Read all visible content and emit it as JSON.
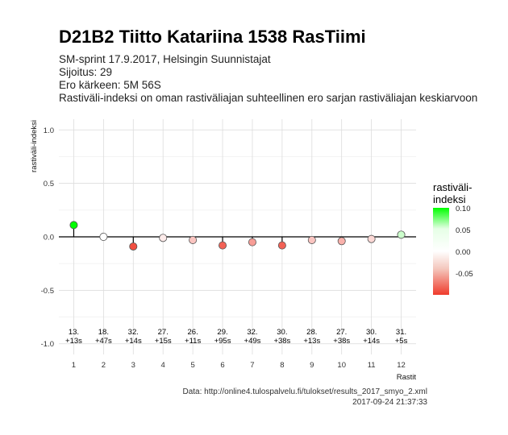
{
  "header": {
    "title": "D21B2 Tiitto Katariina 1538 RasTiimi",
    "subtitle_lines": [
      "SM-sprint 17.9.2017, Helsingin Suunnistajat",
      "Sijoitus: 29",
      "Ero kärkeen: 5M 56S",
      "Rastiväli-indeksi on oman rastiväliajan suhteellinen ero sarjan rastiväliajan keskiarvoon"
    ]
  },
  "legend": {
    "title_line1": "rastiväli-",
    "title_line2": "indeksi",
    "ticks": [
      "0.10",
      "0.05",
      "0.00",
      "-0.05"
    ],
    "colors": {
      "high": "#00ff00",
      "mid": "#ffffff",
      "low": "#ef3b2c"
    }
  },
  "caption": {
    "data_source": "Data: http://online4.tulospalvelu.fi/tulokset/results_2017_smyo_2.xml",
    "timestamp": "2017-09-24 21:37:33"
  },
  "chart_data": {
    "type": "scatter",
    "xlabel": "Rastit",
    "ylabel": "rastiväli-indeksi",
    "ylim": [
      -1.0,
      1.0
    ],
    "yticks": [
      "1.0",
      "0.5",
      "0.0",
      "-0.5",
      "-1.0"
    ],
    "yticks_values": [
      1.0,
      0.5,
      0.0,
      -0.5,
      -1.0
    ],
    "x": [
      1,
      2,
      3,
      4,
      5,
      6,
      7,
      8,
      9,
      10,
      11,
      12
    ],
    "values": [
      0.11,
      0.0,
      -0.09,
      -0.01,
      -0.03,
      -0.08,
      -0.05,
      -0.08,
      -0.03,
      -0.04,
      -0.02,
      0.02
    ],
    "point_labels_top": [
      "13.",
      "18.",
      "32.",
      "27.",
      "26.",
      "29.",
      "32.",
      "30.",
      "28.",
      "27.",
      "30.",
      "31."
    ],
    "point_labels_bottom": [
      "+13s",
      "+47s",
      "+14s",
      "+15s",
      "+11s",
      "+95s",
      "+49s",
      "+38s",
      "+13s",
      "+38s",
      "+14s",
      "+5s"
    ],
    "grid": true
  }
}
